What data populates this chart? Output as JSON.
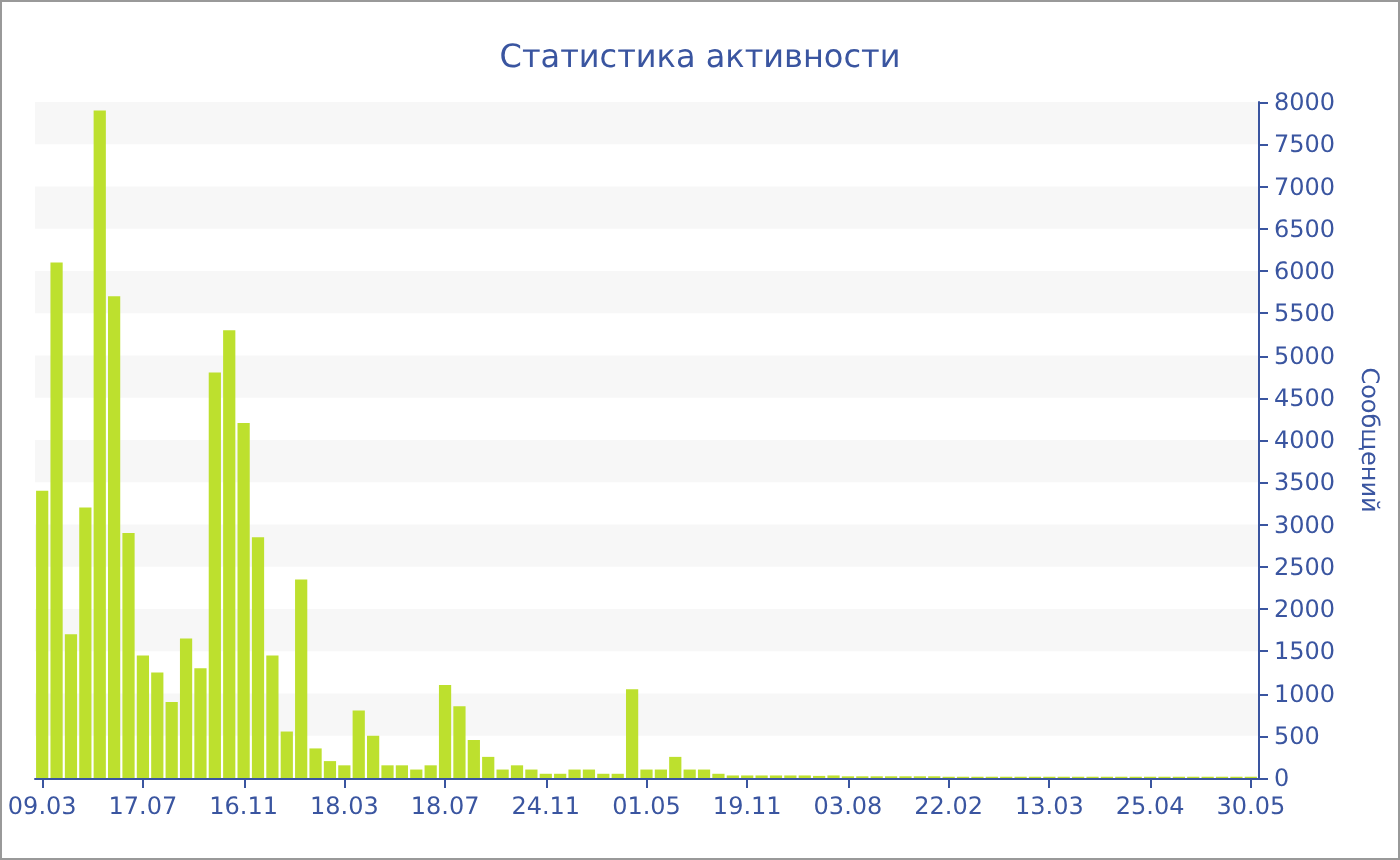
{
  "chart_data": {
    "type": "bar",
    "title": "Статистика активности",
    "ylabel": "Сообщений",
    "categories": [
      "09.03",
      null,
      null,
      null,
      null,
      null,
      null,
      "17.07",
      null,
      null,
      null,
      null,
      null,
      null,
      "16.11",
      null,
      null,
      null,
      null,
      null,
      null,
      "18.03",
      null,
      null,
      null,
      null,
      null,
      null,
      "18.07",
      null,
      null,
      null,
      null,
      null,
      null,
      "24.11",
      null,
      null,
      null,
      null,
      null,
      null,
      "01.05",
      null,
      null,
      null,
      null,
      null,
      null,
      "19.11",
      null,
      null,
      null,
      null,
      null,
      null,
      "03.08",
      null,
      null,
      null,
      null,
      null,
      null,
      "22.02",
      null,
      null,
      null,
      null,
      null,
      null,
      "13.03",
      null,
      null,
      null,
      null,
      null,
      null,
      "25.04",
      null,
      null,
      null,
      null,
      null,
      null,
      "30.05"
    ],
    "values": [
      3400,
      6100,
      1700,
      3200,
      7900,
      5700,
      2900,
      1450,
      1250,
      900,
      1650,
      1300,
      4800,
      5300,
      4200,
      2850,
      1450,
      550,
      2350,
      350,
      200,
      150,
      800,
      500,
      150,
      150,
      100,
      150,
      1100,
      850,
      450,
      250,
      100,
      150,
      100,
      50,
      50,
      100,
      100,
      50,
      50,
      1050,
      100,
      100,
      250,
      100,
      100,
      50,
      30,
      30,
      30,
      30,
      30,
      30,
      25,
      30,
      20,
      20,
      20,
      20,
      20,
      20,
      20,
      15,
      15,
      15,
      15,
      15,
      15,
      15,
      15,
      15,
      15,
      15,
      15,
      15,
      15,
      15,
      15,
      15,
      15,
      15,
      15,
      15,
      15
    ],
    "color": "#bde02e",
    "ylim": [
      0,
      8000
    ],
    "yticks": [
      0,
      500,
      1000,
      1500,
      2000,
      2500,
      3000,
      3500,
      4000,
      4500,
      5000,
      5500,
      6000,
      6500,
      7000,
      7500,
      8000
    ]
  }
}
